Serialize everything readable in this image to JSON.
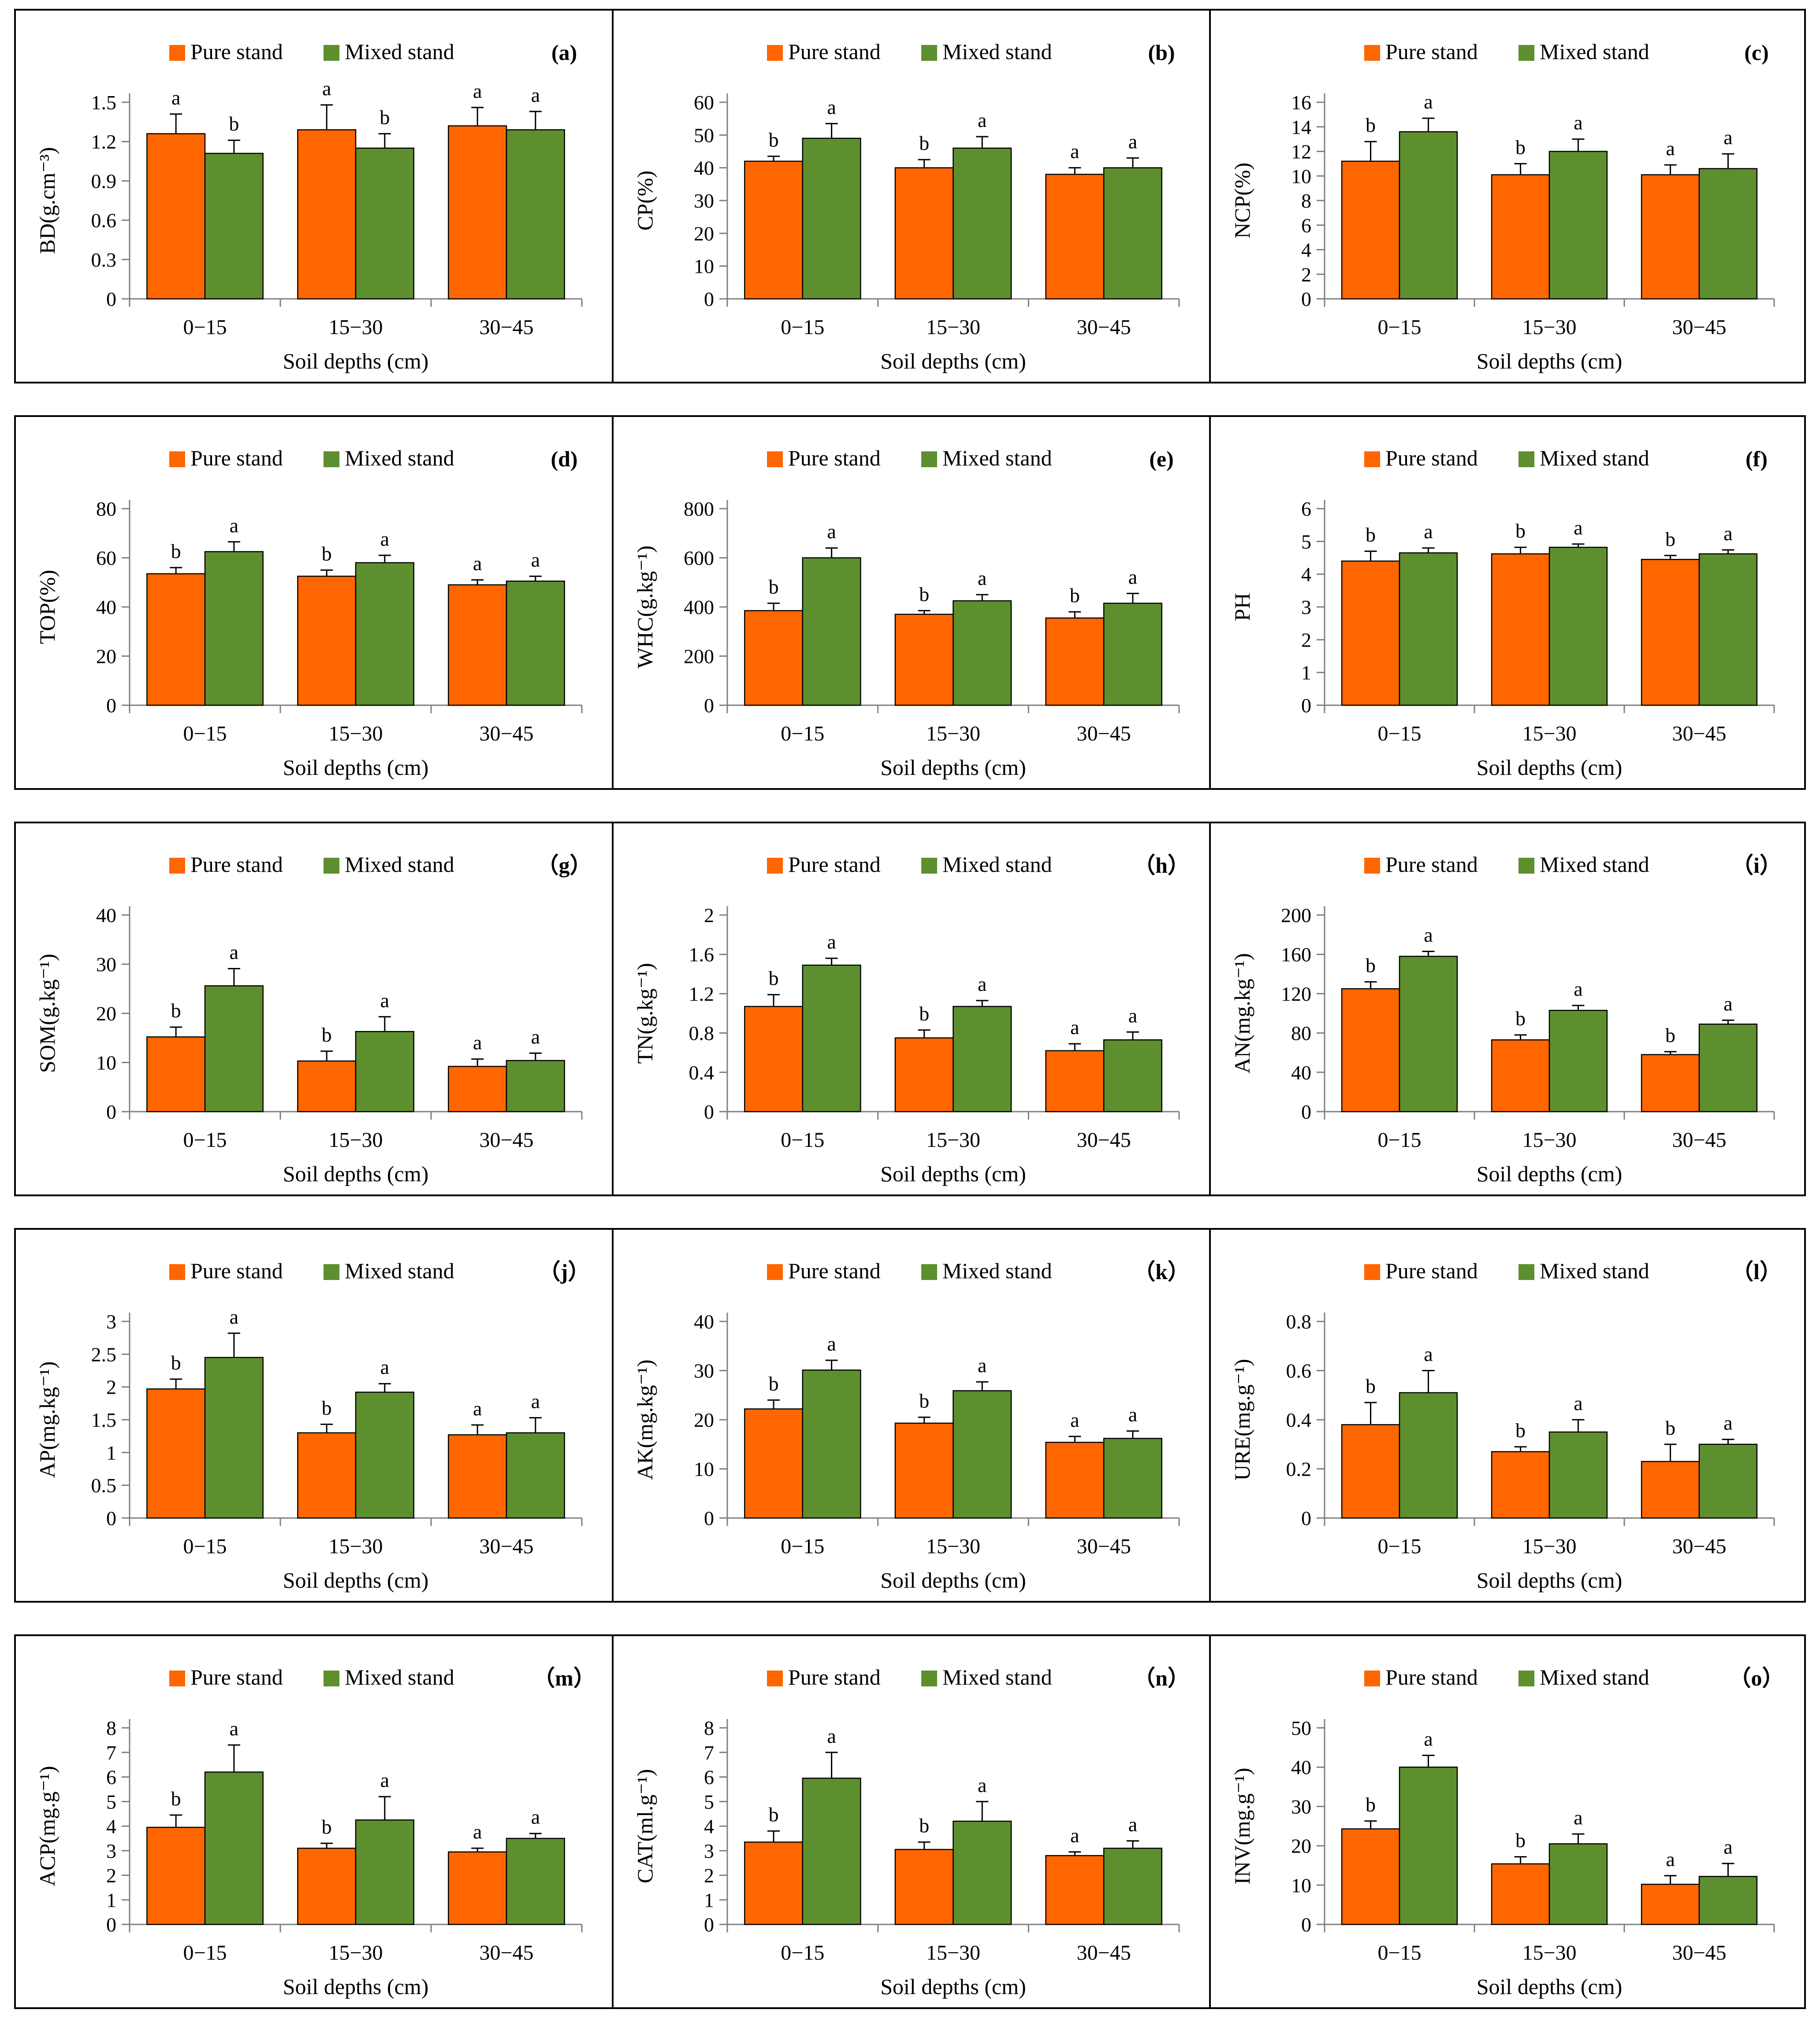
{
  "figure": {
    "legend": {
      "pure": "Pure stand",
      "mixed": "Mixed stand"
    },
    "colors": {
      "pure": "#FF6600",
      "mixed": "#5E8F2F",
      "axis": "#7F7F7F",
      "frame": "#000000"
    }
  },
  "chart_data": [
    {
      "panel": "(a)",
      "type": "bar",
      "ylabel": "BD(g.cm⁻³)",
      "xlabel": "Soil  depths (cm)",
      "categories": [
        "0-15",
        "15-30",
        "30-45"
      ],
      "yticks": [
        "0",
        "0.3",
        "0.6",
        "0.9",
        "1.2",
        "1.5"
      ],
      "ylim": [
        0,
        1.5
      ],
      "series": [
        {
          "name": "Pure stand",
          "values": [
            1.26,
            1.29,
            1.32
          ],
          "errors": [
            0.15,
            0.19,
            0.14
          ],
          "letters": [
            "a",
            "a",
            "a"
          ]
        },
        {
          "name": "Mixed stand",
          "values": [
            1.11,
            1.15,
            1.29
          ],
          "errors": [
            0.1,
            0.11,
            0.14
          ],
          "letters": [
            "b",
            "b",
            "a"
          ]
        }
      ]
    },
    {
      "panel": "(b)",
      "type": "bar",
      "ylabel": "CP(%)",
      "xlabel": "Soil  depths (cm)",
      "categories": [
        "0-15",
        "15-30",
        "30-45"
      ],
      "yticks": [
        "0",
        "10",
        "20",
        "30",
        "40",
        "50",
        "60"
      ],
      "ylim": [
        0,
        60
      ],
      "series": [
        {
          "name": "Pure stand",
          "values": [
            42,
            40,
            38
          ],
          "errors": [
            1.5,
            2.5,
            2
          ],
          "letters": [
            "b",
            "b",
            "a"
          ]
        },
        {
          "name": "Mixed stand",
          "values": [
            49,
            46,
            40
          ],
          "errors": [
            4.5,
            3.5,
            3
          ],
          "letters": [
            "a",
            "a",
            "a"
          ]
        }
      ]
    },
    {
      "panel": "(c)",
      "type": "bar",
      "ylabel": "NCP(%)",
      "xlabel": "Soil  depths (cm)",
      "categories": [
        "0-15",
        "15-30",
        "30-45"
      ],
      "yticks": [
        "0",
        "2",
        "4",
        "6",
        "8",
        "10",
        "12",
        "14",
        "16"
      ],
      "ylim": [
        0,
        16
      ],
      "series": [
        {
          "name": "Pure stand",
          "values": [
            11.2,
            10.1,
            10.1
          ],
          "errors": [
            1.6,
            0.9,
            0.8
          ],
          "letters": [
            "b",
            "b",
            "a"
          ]
        },
        {
          "name": "Mixed stand",
          "values": [
            13.6,
            12.0,
            10.6
          ],
          "errors": [
            1.1,
            1.0,
            1.2
          ],
          "letters": [
            "a",
            "a",
            "a"
          ]
        }
      ]
    },
    {
      "panel": "(d)",
      "type": "bar",
      "ylabel": "TOP(%)",
      "xlabel": "Soil  depths (cm)",
      "categories": [
        "0-15",
        "15-30",
        "30-45"
      ],
      "yticks": [
        "0",
        "20",
        "40",
        "60",
        "80"
      ],
      "ylim": [
        0,
        80
      ],
      "series": [
        {
          "name": "Pure stand",
          "values": [
            53.5,
            52.5,
            49
          ],
          "errors": [
            2.5,
            2.5,
            2
          ],
          "letters": [
            "b",
            "b",
            "a"
          ]
        },
        {
          "name": "Mixed stand",
          "values": [
            62.5,
            58,
            50.5
          ],
          "errors": [
            4,
            3,
            2
          ],
          "letters": [
            "a",
            "a",
            "a"
          ]
        }
      ]
    },
    {
      "panel": "(e)",
      "type": "bar",
      "ylabel": "WHC(g.kg⁻¹)",
      "xlabel": "Soil  depths (cm)",
      "categories": [
        "0-15",
        "15-30",
        "30-45"
      ],
      "yticks": [
        "0",
        "200",
        "400",
        "600",
        "800"
      ],
      "ylim": [
        0,
        800
      ],
      "series": [
        {
          "name": "Pure stand",
          "values": [
            385,
            370,
            355
          ],
          "errors": [
            30,
            15,
            25
          ],
          "letters": [
            "b",
            "b",
            "b"
          ]
        },
        {
          "name": "Mixed stand",
          "values": [
            600,
            425,
            415
          ],
          "errors": [
            40,
            25,
            40
          ],
          "letters": [
            "a",
            "a",
            "a"
          ]
        }
      ]
    },
    {
      "panel": "(f)",
      "type": "bar",
      "ylabel": "PH",
      "xlabel": "Soil  depths (cm)",
      "categories": [
        "0-15",
        "15-30",
        "30-45"
      ],
      "yticks": [
        "0",
        "1",
        "2",
        "3",
        "4",
        "5",
        "6"
      ],
      "ylim": [
        0,
        6
      ],
      "series": [
        {
          "name": "Pure stand",
          "values": [
            4.4,
            4.62,
            4.45
          ],
          "errors": [
            0.3,
            0.2,
            0.12
          ],
          "letters": [
            "b",
            "b",
            "b"
          ]
        },
        {
          "name": "Mixed stand",
          "values": [
            4.65,
            4.82,
            4.62
          ],
          "errors": [
            0.15,
            0.1,
            0.12
          ],
          "letters": [
            "a",
            "a",
            "a"
          ]
        }
      ]
    },
    {
      "panel": "（g）",
      "type": "bar",
      "ylabel": "SOM(g.kg⁻¹)",
      "xlabel": "Soil  depths (cm)",
      "categories": [
        "0-15",
        "15-30",
        "30-45"
      ],
      "yticks": [
        "0",
        "10",
        "20",
        "30",
        "40"
      ],
      "ylim": [
        0,
        40
      ],
      "series": [
        {
          "name": "Pure stand",
          "values": [
            15.2,
            10.3,
            9.2
          ],
          "errors": [
            2,
            2,
            1.5
          ],
          "letters": [
            "b",
            "b",
            "a"
          ]
        },
        {
          "name": "Mixed stand",
          "values": [
            25.6,
            16.3,
            10.4
          ],
          "errors": [
            3.5,
            3,
            1.5
          ],
          "letters": [
            "a",
            "a",
            "a"
          ]
        }
      ]
    },
    {
      "panel": "（h）",
      "type": "bar",
      "ylabel": "TN(g.kg⁻¹)",
      "xlabel": "Soil  depths (cm)",
      "categories": [
        "0-15",
        "15-30",
        "30-45"
      ],
      "yticks": [
        "0",
        "0.4",
        "0.8",
        "1.2",
        "1.6",
        "2"
      ],
      "ylim": [
        0,
        2
      ],
      "series": [
        {
          "name": "Pure stand",
          "values": [
            1.07,
            0.75,
            0.62
          ],
          "errors": [
            0.12,
            0.08,
            0.07
          ],
          "letters": [
            "b",
            "b",
            "a"
          ]
        },
        {
          "name": "Mixed stand",
          "values": [
            1.49,
            1.07,
            0.73
          ],
          "errors": [
            0.07,
            0.06,
            0.08
          ],
          "letters": [
            "a",
            "a",
            "a"
          ]
        }
      ]
    },
    {
      "panel": "（i）",
      "type": "bar",
      "ylabel": "AN(mg.kg⁻¹)",
      "xlabel": "Soil  depths (cm)",
      "categories": [
        "0-15",
        "15-30",
        "30-45"
      ],
      "yticks": [
        "0",
        "40",
        "80",
        "120",
        "160",
        "200"
      ],
      "ylim": [
        0,
        200
      ],
      "series": [
        {
          "name": "Pure stand",
          "values": [
            125,
            73,
            58
          ],
          "errors": [
            7,
            5,
            3
          ],
          "letters": [
            "b",
            "b",
            "b"
          ]
        },
        {
          "name": "Mixed stand",
          "values": [
            158,
            103,
            89
          ],
          "errors": [
            5,
            5,
            4
          ],
          "letters": [
            "a",
            "a",
            "a"
          ]
        }
      ]
    },
    {
      "panel": "（j）",
      "type": "bar",
      "ylabel": "AP(mg.kg⁻¹)",
      "xlabel": "Soil  depths (cm)",
      "categories": [
        "0-15",
        "15-30",
        "30-45"
      ],
      "yticks": [
        "0",
        "0.5",
        "1",
        "1.5",
        "2",
        "2.5",
        "3"
      ],
      "ylim": [
        0,
        3
      ],
      "series": [
        {
          "name": "Pure stand",
          "values": [
            1.97,
            1.3,
            1.27
          ],
          "errors": [
            0.15,
            0.13,
            0.15
          ],
          "letters": [
            "b",
            "b",
            "a"
          ]
        },
        {
          "name": "Mixed stand",
          "values": [
            2.45,
            1.92,
            1.3
          ],
          "errors": [
            0.37,
            0.13,
            0.23
          ],
          "letters": [
            "a",
            "a",
            "a"
          ]
        }
      ]
    },
    {
      "panel": "（k）",
      "type": "bar",
      "ylabel": "AK(mg.kg⁻¹)",
      "xlabel": "Soil  depths (cm)",
      "categories": [
        "0-15",
        "15-30",
        "30-45"
      ],
      "yticks": [
        "0",
        "10",
        "20",
        "30",
        "40"
      ],
      "ylim": [
        0,
        40
      ],
      "series": [
        {
          "name": "Pure stand",
          "values": [
            22.2,
            19.3,
            15.4
          ],
          "errors": [
            1.8,
            1.2,
            1.2
          ],
          "letters": [
            "b",
            "b",
            "a"
          ]
        },
        {
          "name": "Mixed stand",
          "values": [
            30.1,
            25.9,
            16.2
          ],
          "errors": [
            2,
            1.8,
            1.5
          ],
          "letters": [
            "a",
            "a",
            "a"
          ]
        }
      ]
    },
    {
      "panel": "（l）",
      "type": "bar",
      "ylabel": "URE(mg.g⁻¹)",
      "xlabel": "Soil  depths (cm)",
      "categories": [
        "0-15",
        "15-30",
        "30-45"
      ],
      "yticks": [
        "0",
        "0.2",
        "0.4",
        "0.6",
        "0.8"
      ],
      "ylim": [
        0,
        0.8
      ],
      "series": [
        {
          "name": "Pure stand",
          "values": [
            0.38,
            0.27,
            0.23
          ],
          "errors": [
            0.09,
            0.02,
            0.07
          ],
          "letters": [
            "b",
            "b",
            "b"
          ]
        },
        {
          "name": "Mixed stand",
          "values": [
            0.51,
            0.35,
            0.3
          ],
          "errors": [
            0.09,
            0.05,
            0.02
          ],
          "letters": [
            "a",
            "a",
            "a"
          ]
        }
      ]
    },
    {
      "panel": "（m）",
      "type": "bar",
      "ylabel": "ACP(mg.g⁻¹)",
      "xlabel": "Soil  depths (cm)",
      "categories": [
        "0-15",
        "15-30",
        "30-45"
      ],
      "yticks": [
        "0",
        "1",
        "2",
        "3",
        "4",
        "5",
        "6",
        "7",
        "8"
      ],
      "ylim": [
        0,
        8
      ],
      "series": [
        {
          "name": "Pure stand",
          "values": [
            3.95,
            3.1,
            2.95
          ],
          "errors": [
            0.5,
            0.2,
            0.15
          ],
          "letters": [
            "b",
            "b",
            "a"
          ]
        },
        {
          "name": "Mixed stand",
          "values": [
            6.2,
            4.25,
            3.5
          ],
          "errors": [
            1.1,
            0.95,
            0.2
          ],
          "letters": [
            "a",
            "a",
            "a"
          ]
        }
      ]
    },
    {
      "panel": "（n）",
      "type": "bar",
      "ylabel": "CAT(ml.g⁻¹)",
      "xlabel": "Soil  depths (cm)",
      "categories": [
        "0-15",
        "15-30",
        "30-45"
      ],
      "yticks": [
        "0",
        "1",
        "2",
        "3",
        "4",
        "5",
        "6",
        "7",
        "8"
      ],
      "ylim": [
        0,
        8
      ],
      "series": [
        {
          "name": "Pure stand",
          "values": [
            3.35,
            3.05,
            2.8
          ],
          "errors": [
            0.45,
            0.3,
            0.15
          ],
          "letters": [
            "b",
            "b",
            "a"
          ]
        },
        {
          "name": "Mixed stand",
          "values": [
            5.95,
            4.2,
            3.1
          ],
          "errors": [
            1.05,
            0.8,
            0.3
          ],
          "letters": [
            "a",
            "a",
            "a"
          ]
        }
      ]
    },
    {
      "panel": "（o）",
      "type": "bar",
      "ylabel": "INV(mg.g⁻¹)",
      "xlabel": "Soil  depths (cm)",
      "categories": [
        "0-15",
        "15-30",
        "30-45"
      ],
      "yticks": [
        "0",
        "10",
        "20",
        "30",
        "40",
        "50"
      ],
      "ylim": [
        0,
        50
      ],
      "series": [
        {
          "name": "Pure stand",
          "values": [
            24.3,
            15.4,
            10.2
          ],
          "errors": [
            2,
            1.8,
            2.2
          ],
          "letters": [
            "b",
            "b",
            "a"
          ]
        },
        {
          "name": "Mixed stand",
          "values": [
            40,
            20.5,
            12.2
          ],
          "errors": [
            3,
            2.5,
            3.3
          ],
          "letters": [
            "a",
            "a",
            "a"
          ]
        }
      ]
    }
  ]
}
